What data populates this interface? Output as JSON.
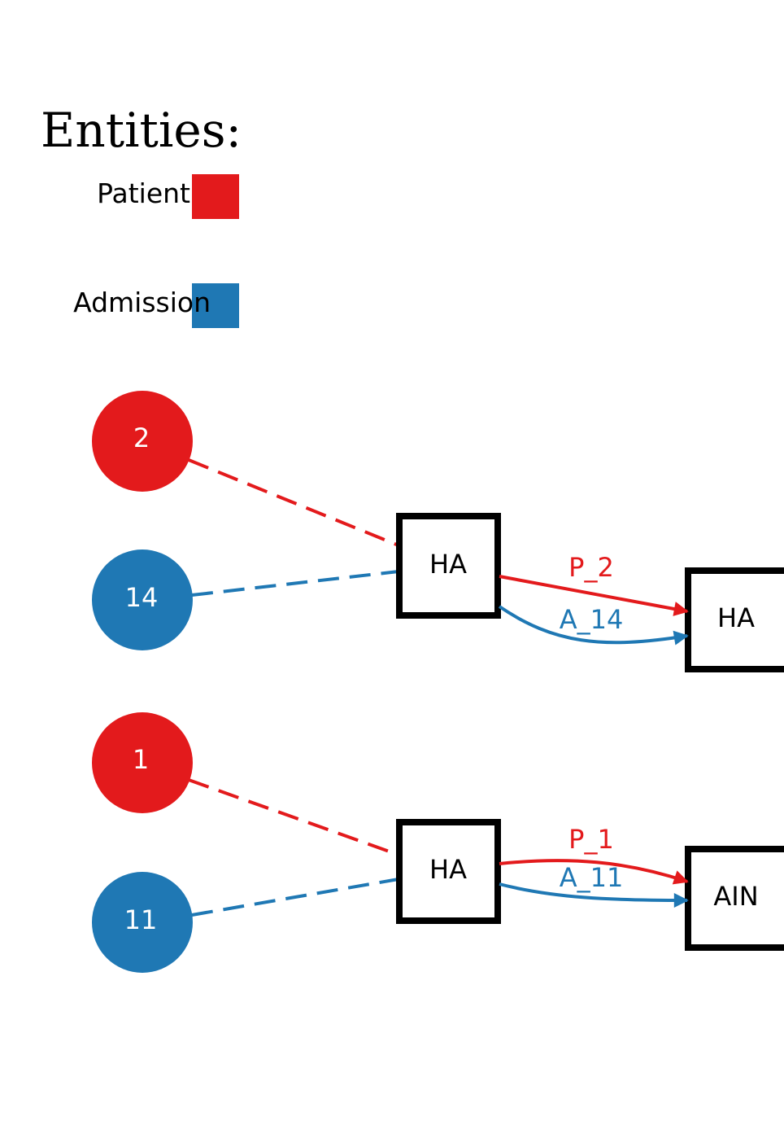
{
  "colors": {
    "patient": "#e31a1c",
    "admission": "#1f78b4",
    "box_border": "#000000",
    "entity_text": "#ffffff"
  },
  "legend": {
    "title": "Entities:",
    "items": [
      {
        "label": "Patient",
        "color": "#e31a1c"
      },
      {
        "label": "Admission",
        "color": "#1f78b4"
      }
    ]
  },
  "groups": [
    {
      "patient_entity": "2",
      "admission_entity": "14",
      "source_activity": "HA",
      "target_activity": "HA",
      "patient_edge_label": "P_2",
      "admission_edge_label": "A_14"
    },
    {
      "patient_entity": "1",
      "admission_entity": "11",
      "source_activity": "HA",
      "target_activity": "AIN",
      "patient_edge_label": "P_1",
      "admission_edge_label": "A_11"
    }
  ]
}
